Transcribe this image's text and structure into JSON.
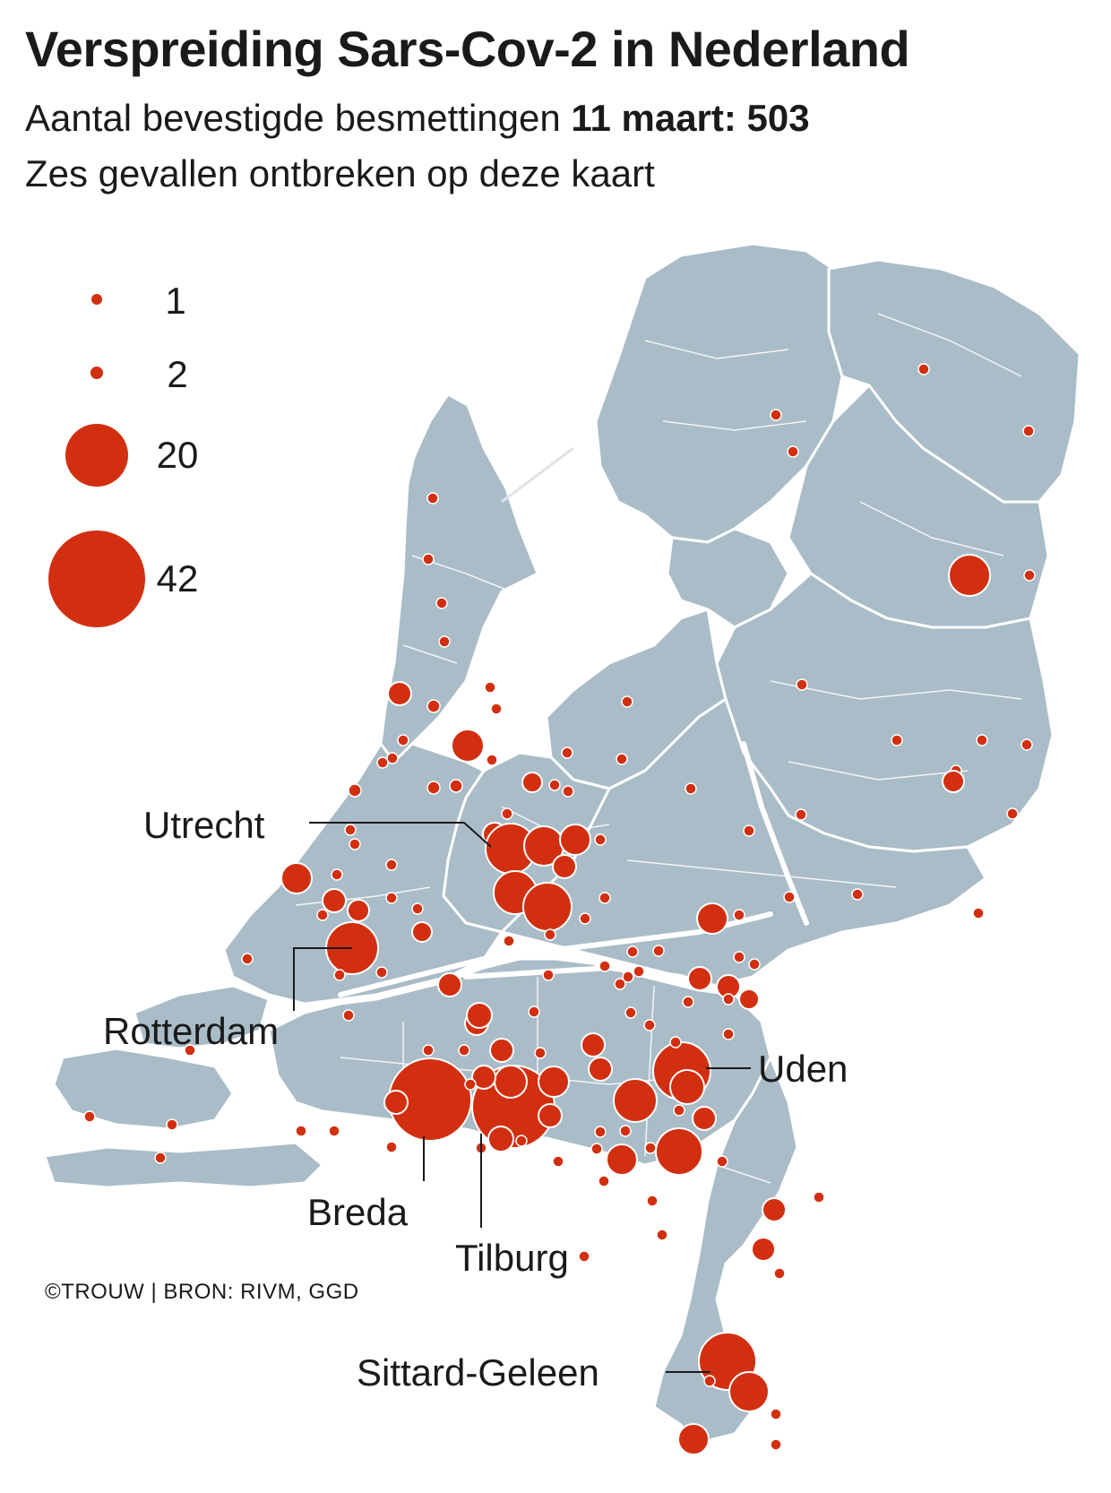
{
  "header": {
    "title": "Verspreiding Sars-Cov-2 in Nederland",
    "subtitle_prefix": "Aantal bevestigde besmettingen ",
    "subtitle_bold": "11 maart: 503",
    "note": "Zes gevallen ontbreken op deze kaart"
  },
  "legend": {
    "items": [
      {
        "label": "1",
        "value": 1
      },
      {
        "label": "2",
        "value": 2
      },
      {
        "label": "20",
        "value": 20
      },
      {
        "label": "42",
        "value": 42
      }
    ]
  },
  "labels": {
    "utrecht": "Utrecht",
    "rotterdam": "Rotterdam",
    "uden": "Uden",
    "breda": "Breda",
    "tilburg": "Tilburg",
    "sittard": "Sittard-Geleen"
  },
  "credit": "©TROUW | BRON: RIVM, GGD",
  "colors": {
    "land": "#a9bcc8",
    "border": "#ffffff",
    "water": "#ffffff",
    "dot": "#d22f10",
    "dot_stroke": "#ffffff",
    "text": "#1a1a1a"
  }
}
